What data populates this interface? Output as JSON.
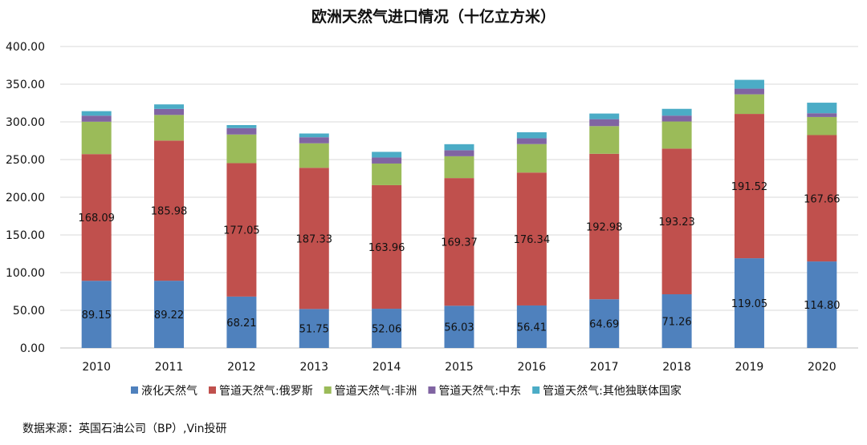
{
  "chart_data": {
    "type": "bar",
    "stacked": true,
    "title": "欧洲天然气进口情况（十亿立方米）",
    "xlabel": "",
    "ylabel": "",
    "ylim": [
      0,
      400
    ],
    "yticks": [
      "0.00",
      "50.00",
      "100.00",
      "150.00",
      "200.00",
      "250.00",
      "300.00",
      "350.00",
      "400.00"
    ],
    "grid": true,
    "legend_position": "bottom",
    "categories": [
      "2010",
      "2011",
      "2012",
      "2013",
      "2014",
      "2015",
      "2016",
      "2017",
      "2018",
      "2019",
      "2020"
    ],
    "series": [
      {
        "name": "液化天然气",
        "color": "#4F81BD",
        "labeled": true,
        "values": [
          89.15,
          89.22,
          68.21,
          51.75,
          52.06,
          56.03,
          56.41,
          64.69,
          71.26,
          119.05,
          114.8
        ]
      },
      {
        "name": "管道天然气:俄罗斯",
        "color": "#C0504D",
        "labeled": true,
        "values": [
          168.09,
          185.98,
          177.05,
          187.33,
          163.96,
          169.37,
          176.34,
          192.98,
          193.23,
          191.52,
          167.66
        ]
      },
      {
        "name": "管道天然气:非洲",
        "color": "#9BBB59",
        "labeled": false,
        "values": [
          43,
          34,
          38,
          32.5,
          28.7,
          29,
          37.8,
          36.7,
          36,
          26,
          24
        ]
      },
      {
        "name": "管道天然气:中东",
        "color": "#8064A2",
        "labeled": false,
        "values": [
          8,
          8,
          8.5,
          8,
          8,
          8,
          7.7,
          9.2,
          7.8,
          7.5,
          5
        ]
      },
      {
        "name": "管道天然气:其他独联体国家",
        "color": "#4BACC6",
        "labeled": false,
        "values": [
          6,
          6,
          4,
          5,
          7.5,
          8,
          8,
          7.5,
          9,
          11.7,
          14
        ]
      }
    ]
  },
  "source": "数据来源：英国石油公司（BP）,Vin投研"
}
